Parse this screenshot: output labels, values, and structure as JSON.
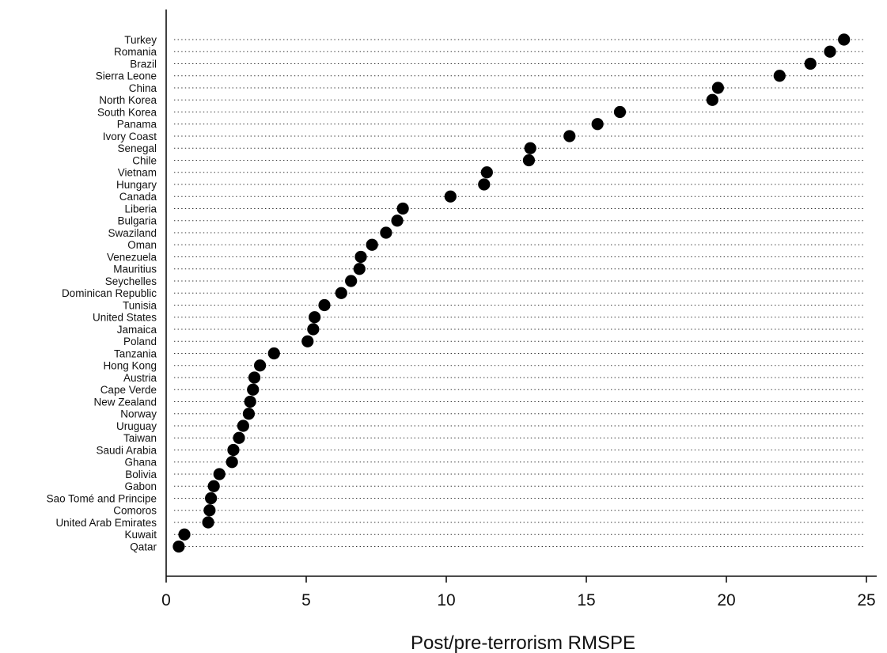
{
  "chart_data": {
    "type": "scatter",
    "xlabel": "Post/pre-terrorism RMSPE",
    "xlim": [
      0,
      26
    ],
    "xticks": [
      0,
      5,
      10,
      15,
      20,
      25
    ],
    "grid": "dotted horizontal guide per category",
    "categories": [
      "Turkey",
      "Romania",
      "Brazil",
      "Sierra Leone",
      "China",
      "North Korea",
      "South Korea",
      "Panama",
      "Ivory Coast",
      "Senegal",
      "Chile",
      "Vietnam",
      "Hungary",
      "Canada",
      "Liberia",
      "Bulgaria",
      "Swaziland",
      "Oman",
      "Venezuela",
      "Mauritius",
      "Seychelles",
      "Dominican Republic",
      "Tunisia",
      "United States",
      "Jamaica",
      "Poland",
      "Tanzania",
      "Hong Kong",
      "Austria",
      "Cape Verde",
      "New Zealand",
      "Norway",
      "Uruguay",
      "Taiwan",
      "Saudi Arabia",
      "Ghana",
      "Bolivia",
      "Gabon",
      "Sao Tomé and Principe",
      "Comoros",
      "United Arab Emirates",
      "Kuwait",
      "Qatar"
    ],
    "values": [
      24.2,
      23.7,
      23.0,
      21.9,
      19.7,
      19.5,
      16.2,
      15.4,
      14.4,
      13.0,
      12.95,
      11.45,
      11.35,
      10.15,
      8.45,
      8.25,
      7.85,
      7.35,
      6.95,
      6.9,
      6.6,
      6.25,
      5.65,
      5.3,
      5.25,
      5.05,
      3.85,
      3.35,
      3.15,
      3.1,
      3.0,
      2.95,
      2.75,
      2.6,
      2.4,
      2.35,
      1.9,
      1.7,
      1.6,
      1.55,
      1.5,
      0.65,
      0.45
    ]
  }
}
